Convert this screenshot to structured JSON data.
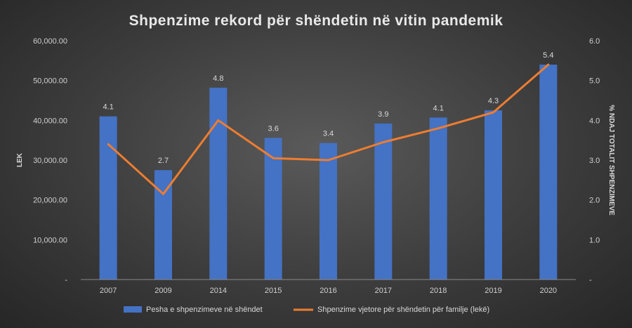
{
  "chart_data": {
    "type": "bar",
    "title": "Shpenzime  rekord për shëndetin  në vitin pandemik",
    "categories": [
      "2007",
      "2009",
      "2014",
      "2015",
      "2016",
      "2017",
      "2018",
      "2019",
      "2020"
    ],
    "series": [
      {
        "name": "Pesha e shpenzimeve në shëndet",
        "type": "bar",
        "axis": "left",
        "color": "#4472c4",
        "values": [
          41000,
          27500,
          48200,
          35600,
          34300,
          39200,
          40700,
          42500,
          54000
        ]
      },
      {
        "name": "Shpenzime vjetore për shëndetin për familje (lekë)",
        "type": "line",
        "axis": "right",
        "color": "#ed7d31",
        "values": [
          3.4,
          2.15,
          4.0,
          3.05,
          3.0,
          3.45,
          3.8,
          4.2,
          5.4
        ]
      }
    ],
    "data_labels": [
      "4.1",
      "2.7",
      "4.8",
      "3.6",
      "3.4",
      "3.9",
      "4.1",
      "4.3",
      "5.4"
    ],
    "y_left": {
      "label": "LEK",
      "ylim": [
        0,
        60000
      ],
      "ticks": [
        "-",
        "10,000.00",
        "20,000.00",
        "30,000.00",
        "40,000.00",
        "50,000.00",
        "60,000.00"
      ]
    },
    "y_right": {
      "label": "% NDAJ TOTALIT SHPENZIMEVE",
      "ylim": [
        0,
        6
      ],
      "ticks": [
        "-",
        "1.0",
        "2.0",
        "3.0",
        "4.0",
        "5.0",
        "6.0"
      ]
    },
    "grid": false,
    "legend": "bottom"
  }
}
